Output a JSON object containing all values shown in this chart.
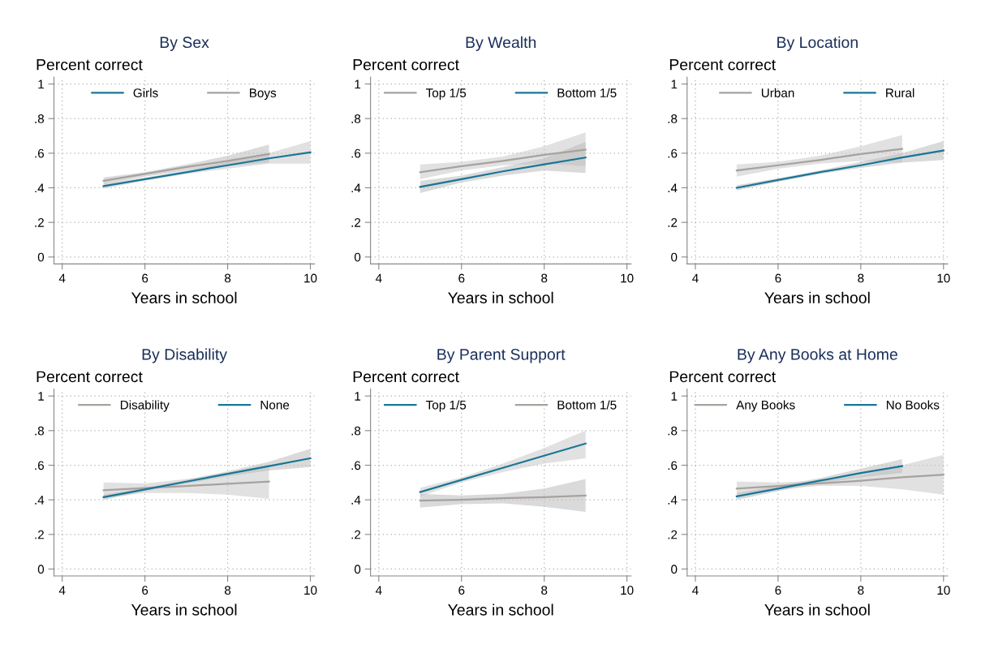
{
  "chart_data": [
    {
      "type": "line",
      "title": "By Sex",
      "ylabel": "Percent correct",
      "xlabel": "Years in school",
      "xlim": [
        3.8,
        10.1
      ],
      "ylim": [
        -0.04,
        1.04
      ],
      "xticks": [
        4,
        6,
        8,
        10
      ],
      "yticks": [
        0,
        {
          "value": 0.2,
          "label": ".2"
        },
        {
          "value": 0.4,
          "label": ".4"
        },
        {
          "value": 0.6,
          "label": ".6"
        },
        {
          "value": 0.8,
          "label": ".8"
        },
        1
      ],
      "grid": true,
      "legend": "top",
      "series": [
        {
          "name": "Girls",
          "color": "#1a7696",
          "x": [
            5,
            6,
            7,
            8,
            9,
            10
          ],
          "values": [
            0.41,
            0.45,
            0.49,
            0.53,
            0.57,
            0.605
          ],
          "lower": [
            0.395,
            0.44,
            0.48,
            0.51,
            0.54,
            0.54
          ],
          "upper": [
            0.425,
            0.46,
            0.5,
            0.55,
            0.6,
            0.67
          ]
        },
        {
          "name": "Boys",
          "color": "#a8a29e",
          "x": [
            5,
            6,
            7,
            8,
            9
          ],
          "values": [
            0.44,
            0.48,
            0.52,
            0.555,
            0.595
          ],
          "lower": [
            0.42,
            0.465,
            0.5,
            0.525,
            0.545
          ],
          "upper": [
            0.46,
            0.49,
            0.535,
            0.585,
            0.65
          ]
        }
      ]
    },
    {
      "type": "line",
      "title": "By Wealth",
      "ylabel": "Percent correct",
      "xlabel": "Years in school",
      "xlim": [
        3.8,
        10.1
      ],
      "ylim": [
        -0.04,
        1.04
      ],
      "xticks": [
        4,
        6,
        8,
        10
      ],
      "yticks": [
        0,
        {
          "value": 0.2,
          "label": ".2"
        },
        {
          "value": 0.4,
          "label": ".4"
        },
        {
          "value": 0.6,
          "label": ".6"
        },
        {
          "value": 0.8,
          "label": ".8"
        },
        1
      ],
      "grid": true,
      "legend": "top",
      "series": [
        {
          "name": "Top 1/5",
          "color": "#a8a29e",
          "x": [
            5,
            6,
            7,
            8,
            9
          ],
          "values": [
            0.49,
            0.525,
            0.555,
            0.59,
            0.62
          ],
          "lower": [
            0.45,
            0.5,
            0.53,
            0.54,
            0.525
          ],
          "upper": [
            0.535,
            0.55,
            0.58,
            0.64,
            0.72
          ]
        },
        {
          "name": "Bottom 1/5",
          "color": "#1a7696",
          "x": [
            5,
            6,
            7,
            8,
            9
          ],
          "values": [
            0.405,
            0.45,
            0.495,
            0.535,
            0.575
          ],
          "lower": [
            0.37,
            0.43,
            0.47,
            0.5,
            0.485
          ],
          "upper": [
            0.44,
            0.47,
            0.52,
            0.57,
            0.665
          ]
        }
      ]
    },
    {
      "type": "line",
      "title": "By Location",
      "ylabel": "Percent correct",
      "xlabel": "Years in school",
      "xlim": [
        3.8,
        10.1
      ],
      "ylim": [
        -0.04,
        1.04
      ],
      "xticks": [
        4,
        6,
        8,
        10
      ],
      "yticks": [
        0,
        {
          "value": 0.2,
          "label": ".2"
        },
        {
          "value": 0.4,
          "label": ".4"
        },
        {
          "value": 0.6,
          "label": ".6"
        },
        {
          "value": 0.8,
          "label": ".8"
        },
        1
      ],
      "grid": true,
      "legend": "top",
      "series": [
        {
          "name": "Urban",
          "color": "#a8a29e",
          "x": [
            5,
            6,
            7,
            8,
            9
          ],
          "values": [
            0.5,
            0.53,
            0.56,
            0.595,
            0.625
          ],
          "lower": [
            0.465,
            0.51,
            0.54,
            0.555,
            0.545
          ],
          "upper": [
            0.535,
            0.55,
            0.585,
            0.64,
            0.705
          ]
        },
        {
          "name": "Rural",
          "color": "#1a7696",
          "x": [
            5,
            6,
            7,
            8,
            9,
            10
          ],
          "values": [
            0.4,
            0.445,
            0.49,
            0.53,
            0.575,
            0.615
          ],
          "lower": [
            0.385,
            0.435,
            0.48,
            0.515,
            0.545,
            0.56
          ],
          "upper": [
            0.415,
            0.455,
            0.5,
            0.55,
            0.6,
            0.67
          ]
        }
      ]
    },
    {
      "type": "line",
      "title": "By Disability",
      "ylabel": "Percent correct",
      "xlabel": "Years in school",
      "xlim": [
        3.8,
        10.1
      ],
      "ylim": [
        -0.04,
        1.04
      ],
      "xticks": [
        4,
        6,
        8,
        10
      ],
      "yticks": [
        0,
        {
          "value": 0.2,
          "label": ".2"
        },
        {
          "value": 0.4,
          "label": ".4"
        },
        {
          "value": 0.6,
          "label": ".6"
        },
        {
          "value": 0.8,
          "label": ".8"
        },
        1
      ],
      "grid": true,
      "legend": "top",
      "series": [
        {
          "name": "Disability",
          "color": "#a8a29e",
          "x": [
            5,
            6,
            7,
            8,
            9
          ],
          "values": [
            0.455,
            0.468,
            0.48,
            0.493,
            0.505
          ],
          "lower": [
            0.41,
            0.44,
            0.44,
            0.43,
            0.405
          ],
          "upper": [
            0.5,
            0.495,
            0.52,
            0.555,
            0.605
          ]
        },
        {
          "name": "None",
          "color": "#1a7696",
          "x": [
            5,
            6,
            7,
            8,
            9,
            10
          ],
          "values": [
            0.415,
            0.46,
            0.505,
            0.55,
            0.595,
            0.64
          ],
          "lower": [
            0.4,
            0.45,
            0.495,
            0.535,
            0.57,
            0.59
          ],
          "upper": [
            0.43,
            0.47,
            0.515,
            0.565,
            0.62,
            0.695
          ]
        }
      ]
    },
    {
      "type": "line",
      "title": "By Parent Support",
      "ylabel": "Percent correct",
      "xlabel": "Years in school",
      "xlim": [
        3.8,
        10.1
      ],
      "ylim": [
        -0.04,
        1.04
      ],
      "xticks": [
        4,
        6,
        8,
        10
      ],
      "yticks": [
        0,
        {
          "value": 0.2,
          "label": ".2"
        },
        {
          "value": 0.4,
          "label": ".4"
        },
        {
          "value": 0.6,
          "label": ".6"
        },
        {
          "value": 0.8,
          "label": ".8"
        },
        1
      ],
      "grid": true,
      "legend": "top",
      "series": [
        {
          "name": "Top 1/5",
          "color": "#1a7696",
          "x": [
            5,
            6,
            7,
            8,
            9
          ],
          "values": [
            0.445,
            0.515,
            0.585,
            0.655,
            0.725
          ],
          "lower": [
            0.42,
            0.5,
            0.56,
            0.61,
            0.64
          ],
          "upper": [
            0.47,
            0.53,
            0.61,
            0.7,
            0.8
          ]
        },
        {
          "name": "Bottom 1/5",
          "color": "#a8a29e",
          "x": [
            5,
            6,
            7,
            8,
            9
          ],
          "values": [
            0.395,
            0.4,
            0.41,
            0.415,
            0.425
          ],
          "lower": [
            0.355,
            0.375,
            0.38,
            0.36,
            0.33
          ],
          "upper": [
            0.435,
            0.425,
            0.435,
            0.465,
            0.52
          ]
        }
      ]
    },
    {
      "type": "line",
      "title": "By Any Books at Home",
      "ylabel": "Percent correct",
      "xlabel": "Years in school",
      "xlim": [
        3.8,
        10.1
      ],
      "ylim": [
        -0.04,
        1.04
      ],
      "xticks": [
        4,
        6,
        8,
        10
      ],
      "yticks": [
        0,
        {
          "value": 0.2,
          "label": ".2"
        },
        {
          "value": 0.4,
          "label": ".4"
        },
        {
          "value": 0.6,
          "label": ".6"
        },
        {
          "value": 0.8,
          "label": ".8"
        },
        1
      ],
      "grid": true,
      "legend": "top",
      "series": [
        {
          "name": "Any Books",
          "color": "#a8a29e",
          "x": [
            5,
            6,
            7,
            8,
            9,
            10
          ],
          "values": [
            0.465,
            0.48,
            0.495,
            0.51,
            0.53,
            0.545
          ],
          "lower": [
            0.43,
            0.46,
            0.48,
            0.48,
            0.46,
            0.43
          ],
          "upper": [
            0.505,
            0.5,
            0.51,
            0.54,
            0.6,
            0.66
          ]
        },
        {
          "name": "No Books",
          "color": "#1a7696",
          "x": [
            5,
            6,
            7,
            8,
            9
          ],
          "values": [
            0.42,
            0.465,
            0.51,
            0.555,
            0.595
          ],
          "lower": [
            0.4,
            0.45,
            0.495,
            0.53,
            0.555
          ],
          "upper": [
            0.44,
            0.48,
            0.525,
            0.58,
            0.635
          ]
        }
      ]
    }
  ]
}
